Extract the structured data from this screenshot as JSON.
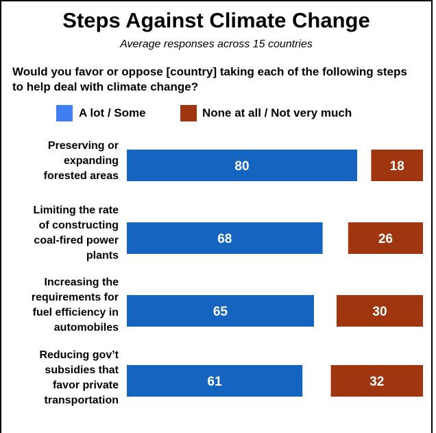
{
  "chart_data": {
    "type": "bar",
    "title": "Steps Against Climate Change",
    "subtitle": "Average responses across 15 countries",
    "question": "Would you favor or oppose [country] taking each of the following steps to help deal with climate change?",
    "categories": [
      "Preserving or\nexpanding\nforested areas",
      "Limiting the rate\nof constructing\ncoal-fired power\nplants",
      "Increasing the\nrequirements for\nfuel efficiency in\nautomobiles",
      "Reducing gov’t\nsubsidies that\nfavor private\ntransportation"
    ],
    "series": [
      {
        "name": "A lot / Some",
        "values": [
          80,
          68,
          65,
          61
        ],
        "color": "#1565C0"
      },
      {
        "name": "None at all / Not very much",
        "values": [
          18,
          26,
          30,
          32
        ],
        "color": "#A0360F"
      }
    ],
    "legend_swatch_colors": [
      "#3F7FF2",
      "#A0360F"
    ],
    "legend_position": "top",
    "grid": false
  }
}
